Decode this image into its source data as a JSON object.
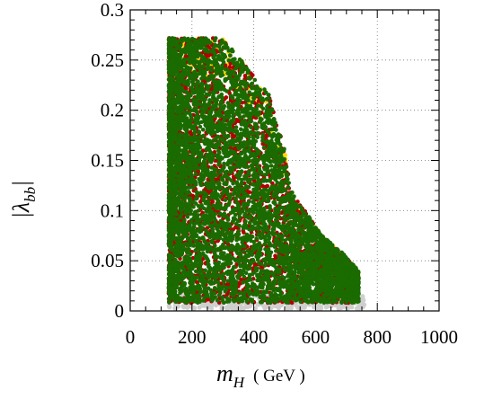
{
  "chart_data": {
    "type": "scatter",
    "title": "",
    "xlabel": {
      "main": "m",
      "sub": "H",
      "unit": "( GeV )"
    },
    "ylabel": {
      "main": "|λ",
      "sub": "bb",
      "close": "|"
    },
    "xlim": [
      0,
      1000
    ],
    "ylim": [
      0,
      0.3
    ],
    "x_ticks": [
      0,
      200,
      400,
      600,
      800,
      1000
    ],
    "x_tick_labels": [
      "0",
      "200",
      "400",
      "600",
      "800",
      "1000"
    ],
    "y_ticks": [
      0,
      0.05,
      0.1,
      0.15,
      0.2,
      0.25,
      0.3
    ],
    "y_tick_labels": [
      "0",
      "0.05",
      "0.1",
      "0.15",
      "0.2",
      "0.25",
      "0.3"
    ],
    "grid": true,
    "grid_style": "dotted",
    "legend": "none",
    "series": [
      {
        "color": "#cfcfcf",
        "description_of_region": "band near zero",
        "x_range": [
          125,
          760
        ],
        "y_range": [
          0.002,
          0.017
        ],
        "point_count": 350
      },
      {
        "color": "#ffd700",
        "x_range": [
          125,
          740
        ],
        "y_range": [
          0.008,
          0.272
        ],
        "point_count": 220
      },
      {
        "color": "#b30000",
        "x_range": [
          125,
          740
        ],
        "y_range": [
          0.008,
          0.272
        ],
        "point_count": 2600
      },
      {
        "color": "#1a6b00",
        "x_range": [
          125,
          740
        ],
        "y_range": [
          0.008,
          0.272
        ],
        "point_count": 5200
      }
    ],
    "envelope": {
      "x": [
        125,
        300,
        320,
        450,
        500,
        520,
        620,
        680,
        740
      ],
      "y_max": [
        0.272,
        0.272,
        0.265,
        0.215,
        0.16,
        0.12,
        0.075,
        0.06,
        0.04
      ]
    }
  }
}
